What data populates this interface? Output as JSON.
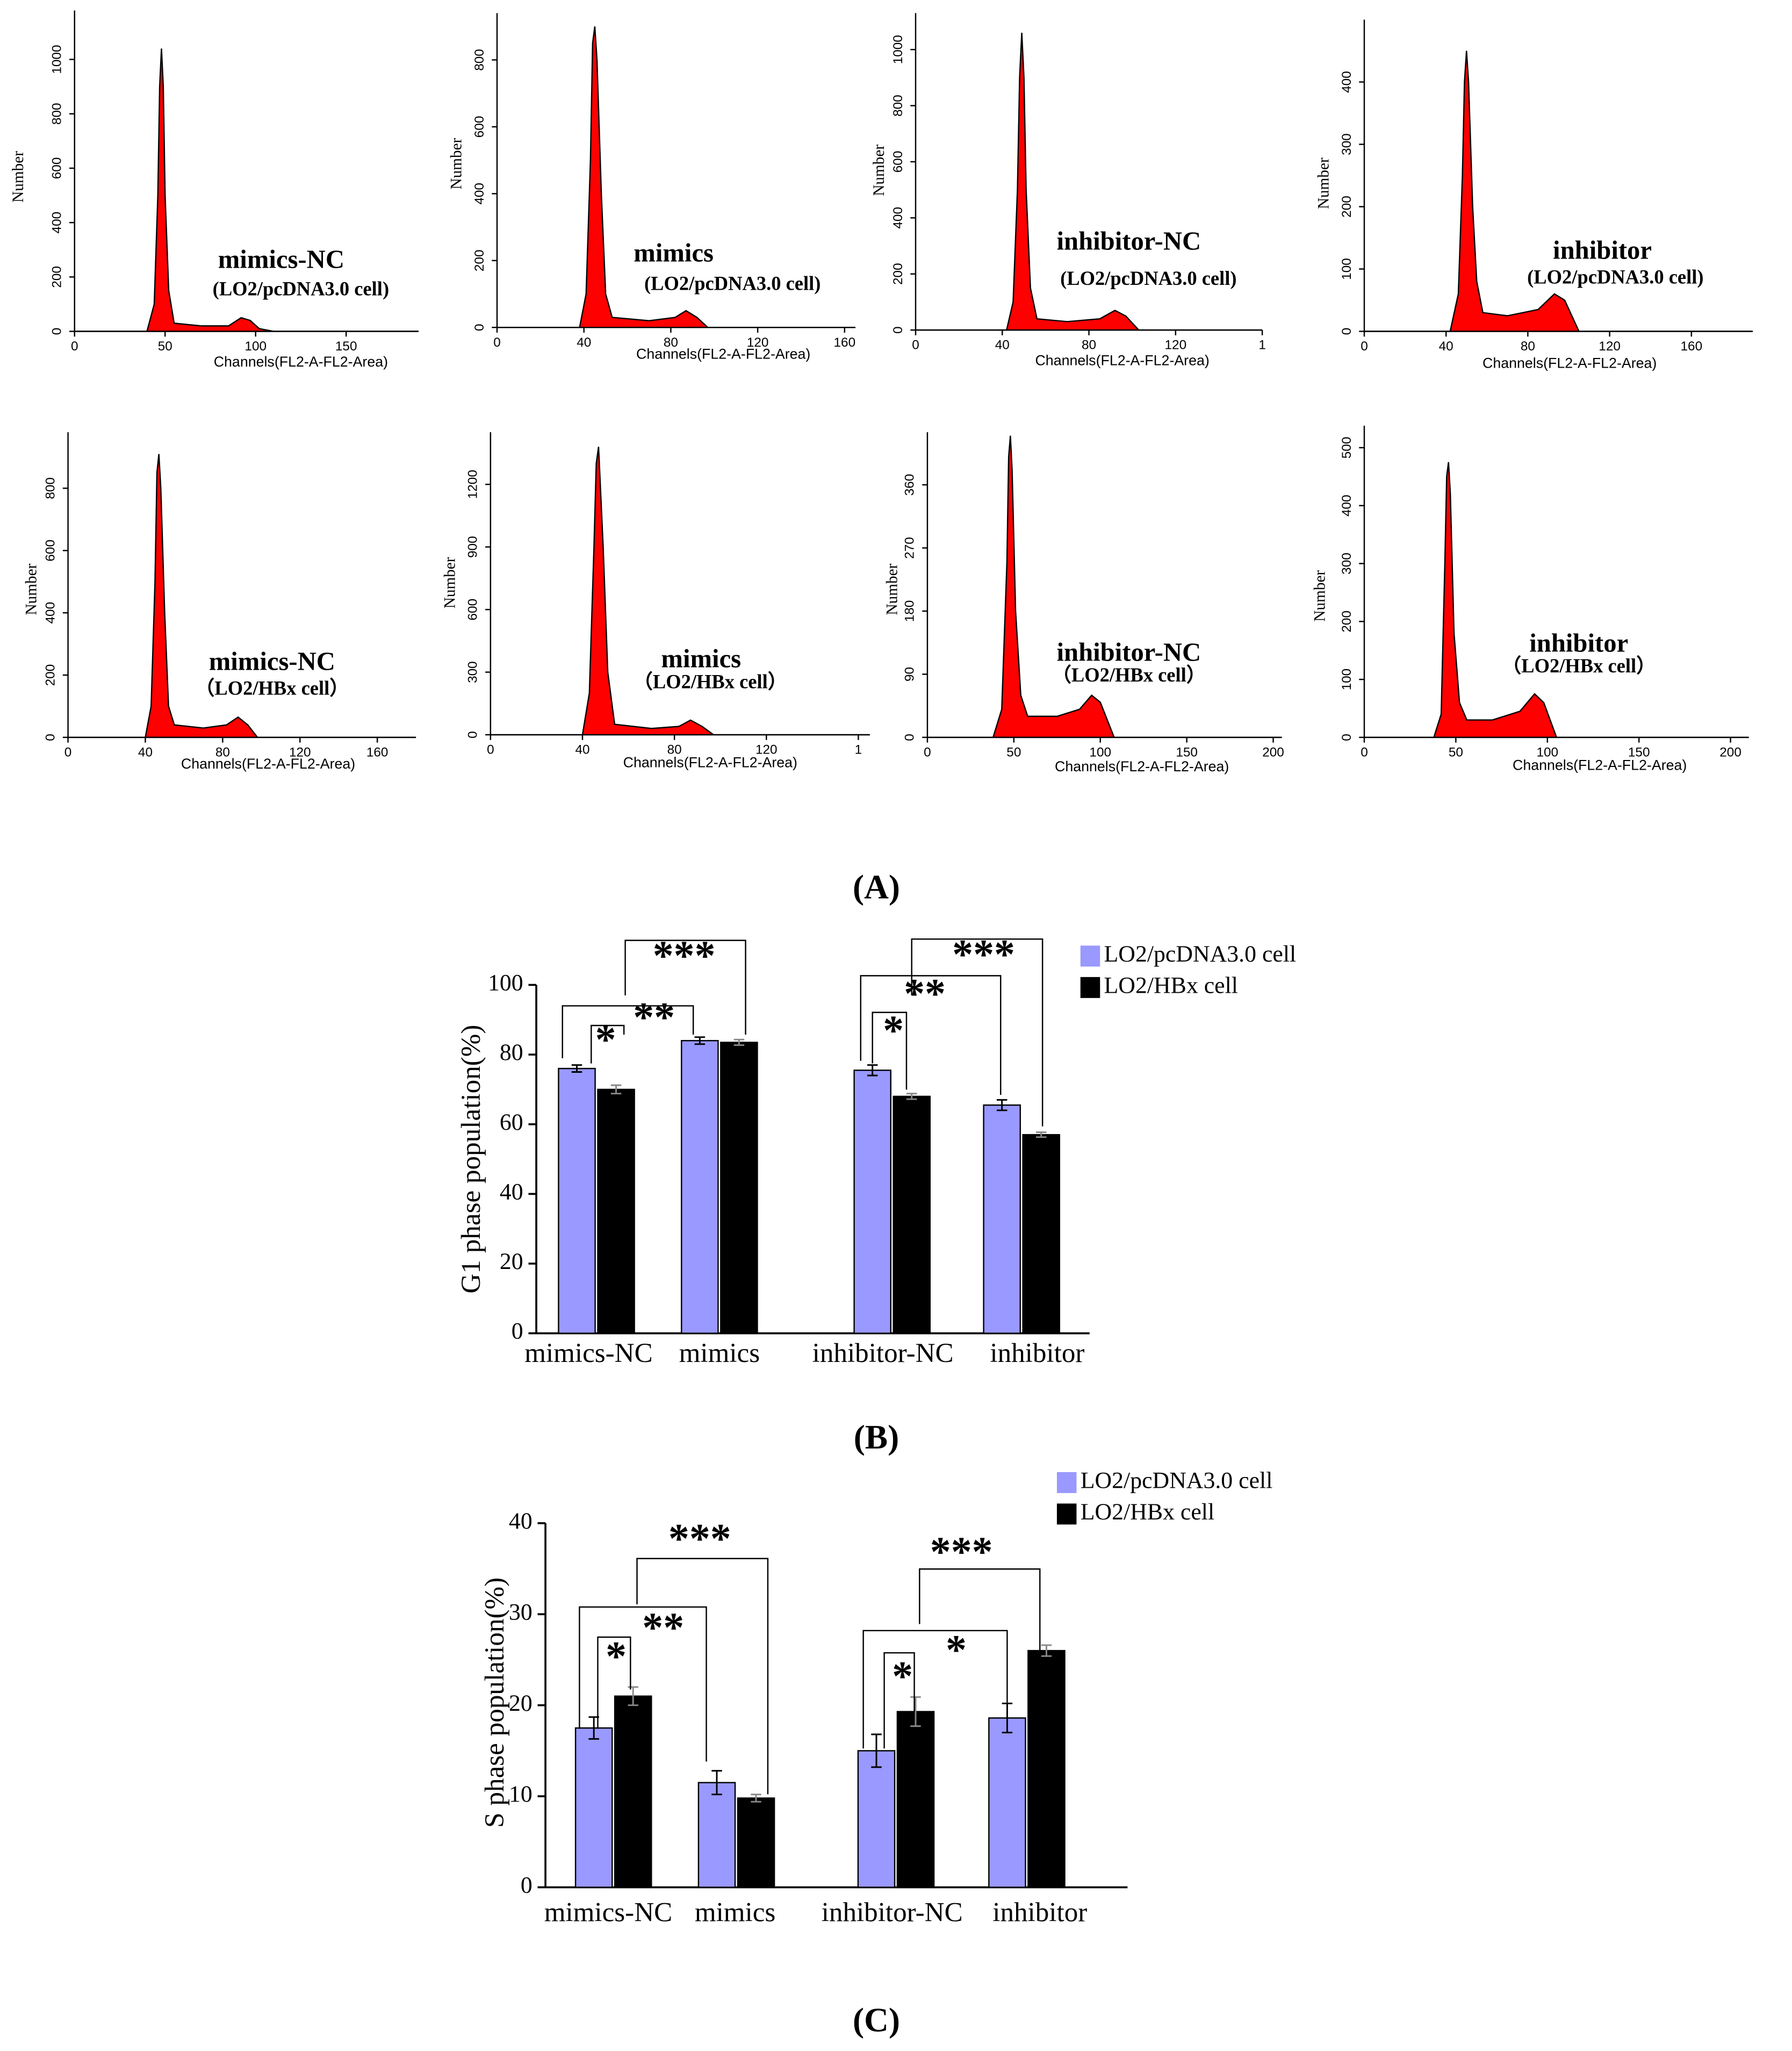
{
  "panel_labels": [
    "(A)",
    "(B)",
    "(C)"
  ],
  "chart_data": [
    {
      "type": "area",
      "title": "mimics-NC",
      "subtitle": "(LO2/pcDNA3.0 cell)",
      "xlabel": "Channels(FL2-A-FL2-Area)",
      "ylabel": "Number",
      "color": "#ff0000",
      "x": [
        0,
        40,
        44,
        46,
        47,
        48,
        49,
        50,
        52,
        55,
        70,
        85,
        92,
        97,
        102,
        110,
        190
      ],
      "values": [
        0,
        0,
        100,
        500,
        900,
        1040,
        900,
        500,
        150,
        30,
        20,
        20,
        50,
        40,
        10,
        0,
        0
      ],
      "xlim": [
        0,
        190
      ],
      "ylim": [
        0,
        1180
      ],
      "xticks": [
        0,
        50,
        100,
        150
      ],
      "yticks": [
        0,
        200,
        400,
        600,
        800,
        1000
      ]
    },
    {
      "type": "area",
      "title": "mimics",
      "subtitle": "(LO2/pcDNA3.0 cell)",
      "xlabel": "Channels(FL2-A-FL2-Area)",
      "ylabel": "Number",
      "color": "#ff0000",
      "x": [
        0,
        38,
        41,
        43,
        44,
        45,
        46,
        48,
        50,
        53,
        70,
        82,
        87,
        92,
        97,
        165
      ],
      "values": [
        0,
        0,
        100,
        500,
        850,
        900,
        800,
        400,
        100,
        30,
        20,
        30,
        50,
        30,
        0,
        0
      ],
      "xlim": [
        0,
        165
      ],
      "ylim": [
        0,
        940
      ],
      "xticks": [
        0,
        40,
        80,
        120,
        160
      ],
      "yticks": [
        0,
        200,
        400,
        600,
        800
      ]
    },
    {
      "type": "area",
      "title": "inhibitor-NC",
      "subtitle": "(LO2/pcDNA3.0 cell)",
      "xlabel": "Channels(FL2-A-FL2-Area)",
      "ylabel": "Number",
      "color": "#ff0000",
      "x": [
        0,
        42,
        45,
        47,
        48,
        49,
        50,
        51,
        53,
        56,
        70,
        85,
        92,
        97,
        103,
        160
      ],
      "values": [
        0,
        0,
        100,
        500,
        900,
        1060,
        900,
        500,
        150,
        40,
        30,
        40,
        70,
        50,
        0,
        0
      ],
      "xlim": [
        0,
        160
      ],
      "ylim": [
        0,
        1130
      ],
      "xticks": [
        0,
        40,
        80,
        120,
        {
          "value": 160,
          "label": "1"
        }
      ],
      "yticks": [
        0,
        200,
        400,
        600,
        800,
        1000
      ]
    },
    {
      "type": "area",
      "title": "inhibitor",
      "subtitle": "(LO2/pcDNA3.0 cell)",
      "xlabel": "Channels(FL2-A-FL2-Area)",
      "ylabel": "Number",
      "color": "#ff0000",
      "x": [
        0,
        42,
        46,
        48,
        49,
        50,
        51,
        53,
        55,
        58,
        70,
        85,
        93,
        98,
        105,
        190
      ],
      "values": [
        0,
        0,
        60,
        250,
        400,
        450,
        400,
        200,
        80,
        30,
        25,
        35,
        60,
        50,
        0,
        0
      ],
      "xlim": [
        0,
        190
      ],
      "ylim": [
        0,
        500
      ],
      "xticks": [
        0,
        40,
        80,
        120,
        160
      ],
      "yticks": [
        0,
        100,
        200,
        300,
        400
      ]
    },
    {
      "type": "area",
      "title": "mimics-NC",
      "subtitle": "（LO2/HBx cell）",
      "xlabel": "Channels(FL2-A-FL2-Area)",
      "ylabel": "Number",
      "color": "#ff0000",
      "x": [
        0,
        40,
        43,
        45,
        46,
        47,
        48,
        50,
        52,
        55,
        70,
        82,
        88,
        93,
        98,
        180
      ],
      "values": [
        0,
        0,
        100,
        500,
        850,
        910,
        800,
        400,
        100,
        40,
        30,
        40,
        65,
        40,
        0,
        0
      ],
      "xlim": [
        0,
        180
      ],
      "ylim": [
        0,
        980
      ],
      "xticks": [
        0,
        40,
        80,
        120,
        160
      ],
      "yticks": [
        0,
        200,
        400,
        600,
        800
      ]
    },
    {
      "type": "area",
      "title": "mimics",
      "subtitle": "（LO2/HBx cell）",
      "xlabel": "Channels(FL2-A-FL2-Area)",
      "ylabel": "Number",
      "color": "#ff0000",
      "x": [
        0,
        40,
        43,
        45,
        46,
        47,
        49,
        51,
        54,
        70,
        82,
        87,
        92,
        97,
        165
      ],
      "values": [
        0,
        0,
        200,
        900,
        1300,
        1380,
        900,
        300,
        50,
        30,
        40,
        70,
        40,
        0,
        0
      ],
      "xlim": [
        0,
        165
      ],
      "ylim": [
        0,
        1450
      ],
      "xticks": [
        0,
        40,
        80,
        120,
        {
          "value": 160,
          "label": "1"
        }
      ],
      "yticks": [
        0,
        300,
        600,
        900,
        1200
      ]
    },
    {
      "type": "area",
      "title": "inhibitor-NC",
      "subtitle": "（LO2/HBx cell）",
      "xlabel": "Channels(FL2-A-FL2-Area)",
      "ylabel": "Number",
      "color": "#ff0000",
      "x": [
        0,
        38,
        43,
        46,
        47,
        48,
        49,
        51,
        54,
        58,
        75,
        88,
        95,
        100,
        108,
        205
      ],
      "values": [
        0,
        0,
        40,
        250,
        400,
        430,
        380,
        180,
        60,
        30,
        30,
        40,
        60,
        50,
        0,
        0
      ],
      "xlim": [
        0,
        205
      ],
      "ylim": [
        0,
        435
      ],
      "xticks": [
        0,
        50,
        100,
        150,
        200
      ],
      "yticks": [
        0,
        90,
        180,
        270,
        360
      ]
    },
    {
      "type": "area",
      "title": "inhibitor",
      "subtitle": "（LO2/HBx cell）",
      "xlabel": "Channels(FL2-A-FL2-Area)",
      "ylabel": "Number",
      "color": "#ff0000",
      "x": [
        0,
        38,
        42,
        44,
        45,
        46,
        47,
        49,
        52,
        56,
        70,
        85,
        93,
        98,
        105,
        210
      ],
      "values": [
        0,
        0,
        40,
        300,
        450,
        475,
        420,
        180,
        60,
        30,
        30,
        45,
        75,
        60,
        0,
        0
      ],
      "xlim": [
        0,
        210
      ],
      "ylim": [
        0,
        538
      ],
      "xticks": [
        0,
        50,
        100,
        150,
        200
      ],
      "yticks": [
        0,
        100,
        200,
        300,
        400,
        500
      ]
    },
    {
      "type": "bar",
      "ylabel": "G1 phase population(%)",
      "categories": [
        "mimics-NC",
        "mimics",
        "inhibitor-NC",
        "inhibitor"
      ],
      "series": [
        {
          "name": "LO2/pcDNA3.0 cell",
          "color": "#9999ff",
          "values": [
            76,
            84,
            75.5,
            65.5
          ],
          "errors": [
            1,
            1,
            1.5,
            1.5
          ]
        },
        {
          "name": "LO2/HBx cell",
          "color": "#000000",
          "values": [
            70,
            83.5,
            68,
            57
          ],
          "errors": [
            1.2,
            0.8,
            0.8,
            0.7
          ]
        }
      ],
      "ylim": [
        0,
        100
      ],
      "yticks": [
        0,
        20,
        40,
        60,
        80,
        100
      ],
      "annotations": [
        "*",
        "**",
        "***",
        "*",
        "**",
        "***"
      ]
    },
    {
      "type": "bar",
      "ylabel": "S phase population(%)",
      "categories": [
        "mimics-NC",
        "mimics",
        "inhibitor-NC",
        "inhibitor"
      ],
      "series": [
        {
          "name": "LO2/pcDNA3.0 cell",
          "color": "#9999ff",
          "values": [
            17.5,
            11.5,
            15,
            18.6
          ],
          "errors": [
            1.2,
            1.3,
            1.8,
            1.6
          ]
        },
        {
          "name": "LO2/HBx cell",
          "color": "#000000",
          "values": [
            21,
            9.8,
            19.3,
            26
          ],
          "errors": [
            1,
            0.4,
            1.6,
            0.6
          ]
        }
      ],
      "ylim": [
        0,
        40
      ],
      "yticks": [
        0,
        10,
        20,
        30,
        40
      ],
      "annotations": [
        "*",
        "**",
        "***",
        "*",
        "*",
        "***"
      ]
    }
  ]
}
